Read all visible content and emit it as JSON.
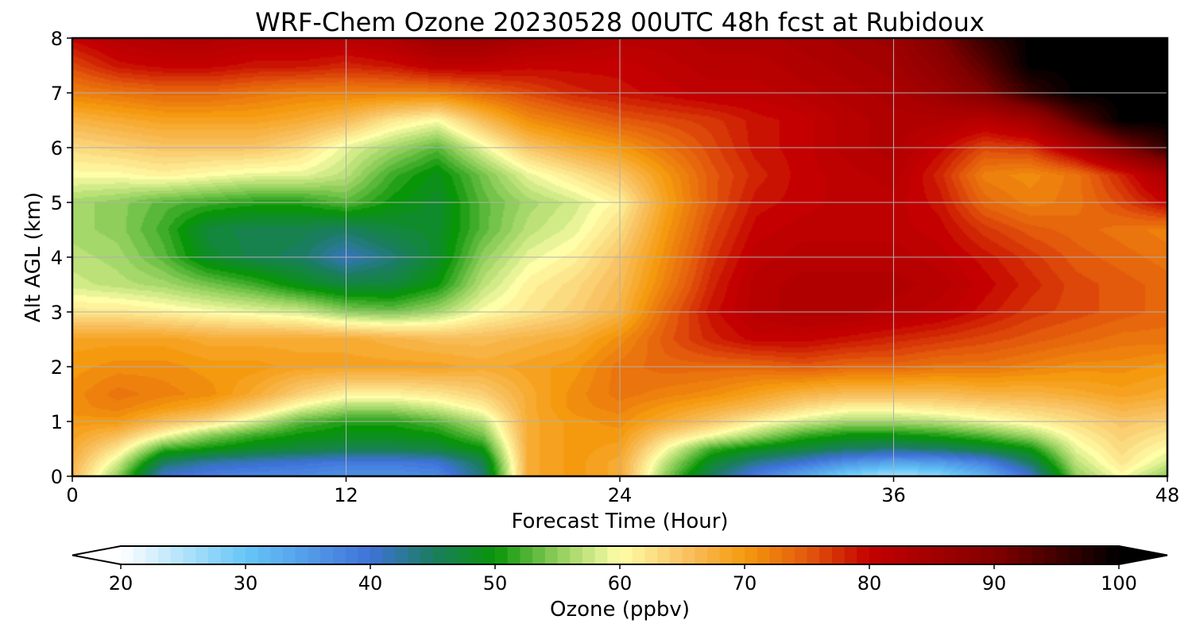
{
  "chart_data": {
    "type": "heatmap",
    "title": "WRF-Chem Ozone  20230528 00UTC 48h fcst at Rubidoux",
    "xlabel": "Forecast Time (Hour)",
    "ylabel": "Alt AGL (km)",
    "xlim": [
      0,
      48
    ],
    "ylim": [
      0,
      8
    ],
    "x_ticks": [
      "0",
      "12",
      "24",
      "36",
      "48"
    ],
    "y_ticks": [
      "0",
      "1",
      "2",
      "3",
      "4",
      "5",
      "6",
      "7",
      "8"
    ],
    "grid": true,
    "x": [
      0,
      2,
      4,
      6,
      8,
      10,
      12,
      14,
      16,
      18,
      20,
      22,
      24,
      26,
      28,
      30,
      32,
      34,
      36,
      38,
      40,
      42,
      44,
      46,
      48
    ],
    "y": [
      0,
      0.25,
      0.5,
      0.75,
      1,
      1.25,
      1.5,
      2,
      2.5,
      3,
      3.5,
      4,
      4.5,
      5,
      5.5,
      6,
      6.5,
      7,
      7.5,
      8
    ],
    "z": [
      [
        66,
        55,
        40,
        38,
        37,
        37,
        36,
        36,
        37,
        44,
        68,
        70,
        68,
        55,
        45,
        38,
        33,
        28,
        25,
        27,
        32,
        40,
        55,
        60,
        55
      ],
      [
        67,
        58,
        45,
        42,
        41,
        40,
        39,
        39,
        40,
        46,
        68,
        70,
        68,
        57,
        48,
        43,
        40,
        36,
        34,
        35,
        38,
        45,
        57,
        62,
        58
      ],
      [
        68,
        62,
        52,
        50,
        48,
        47,
        46,
        46,
        47,
        50,
        68,
        70,
        69,
        60,
        52,
        49,
        47,
        45,
        44,
        45,
        47,
        50,
        59,
        63,
        60
      ],
      [
        69,
        66,
        60,
        55,
        52,
        50,
        49,
        49,
        50,
        54,
        68,
        70,
        70,
        64,
        60,
        56,
        52,
        50,
        50,
        51,
        53,
        56,
        61,
        64,
        62
      ],
      [
        70,
        70,
        66,
        63,
        58,
        53,
        51,
        51,
        53,
        57,
        68,
        70,
        71,
        68,
        65,
        61,
        58,
        56,
        56,
        57,
        59,
        61,
        63,
        65,
        64
      ],
      [
        71,
        72,
        70,
        68,
        64,
        59,
        56,
        56,
        58,
        61,
        68,
        71,
        72,
        70,
        68,
        66,
        63,
        61,
        61,
        62,
        63,
        64,
        65,
        67,
        66
      ],
      [
        71,
        73,
        72,
        71,
        68,
        64,
        61,
        61,
        62,
        64,
        68,
        71,
        73,
        72,
        71,
        69,
        67,
        66,
        66,
        66,
        67,
        67,
        68,
        69,
        68
      ],
      [
        70,
        71,
        71,
        70,
        70,
        69,
        69,
        69,
        69,
        68,
        69,
        70,
        73,
        74,
        74,
        74,
        75,
        74,
        74,
        73,
        73,
        72,
        71,
        71,
        70
      ],
      [
        69,
        69,
        69,
        68,
        68,
        68,
        68,
        67,
        66,
        66,
        67,
        68,
        71,
        75,
        78,
        80,
        80,
        79,
        78,
        77,
        76,
        75,
        74,
        73,
        73
      ],
      [
        62,
        62,
        61,
        60,
        59,
        58,
        55,
        54,
        56,
        60,
        62,
        64,
        67,
        74,
        79,
        82,
        83,
        83,
        82,
        81,
        79,
        77,
        76,
        75,
        74
      ],
      [
        58,
        57,
        56,
        54,
        52,
        49,
        47,
        47,
        50,
        57,
        61,
        63,
        66,
        72,
        78,
        82,
        83,
        83,
        83,
        82,
        80,
        78,
        76,
        75,
        74
      ],
      [
        57,
        56,
        53,
        48,
        46,
        45,
        41,
        44,
        48,
        55,
        59,
        61,
        65,
        71,
        77,
        81,
        82,
        82,
        82,
        81,
        79,
        77,
        75,
        74,
        73
      ],
      [
        56,
        55,
        52,
        47,
        46,
        46,
        45,
        47,
        48,
        53,
        57,
        59,
        63,
        70,
        76,
        80,
        81,
        81,
        81,
        80,
        77,
        75,
        74,
        73,
        72
      ],
      [
        56,
        55,
        53,
        52,
        51,
        51,
        53,
        50,
        48,
        53,
        56,
        58,
        61,
        69,
        75,
        79,
        80,
        81,
        81,
        79,
        74,
        72,
        73,
        76,
        80
      ],
      [
        60,
        60,
        61,
        60,
        59,
        59,
        57,
        52,
        49,
        54,
        59,
        62,
        65,
        70,
        75,
        78,
        80,
        81,
        82,
        78,
        72,
        71,
        73,
        78,
        84
      ],
      [
        63,
        64,
        65,
        65,
        65,
        63,
        59,
        56,
        53,
        59,
        65,
        68,
        70,
        73,
        76,
        79,
        80,
        82,
        83,
        80,
        76,
        77,
        83,
        90,
        96
      ],
      [
        67,
        68,
        69,
        69,
        69,
        68,
        66,
        62,
        60,
        66,
        71,
        73,
        75,
        76,
        77,
        79,
        80,
        82,
        83,
        83,
        82,
        85,
        93,
        100,
        100
      ],
      [
        72,
        73,
        74,
        74,
        73,
        72,
        72,
        72,
        72,
        74,
        76,
        78,
        79,
        80,
        81,
        81,
        82,
        83,
        84,
        86,
        90,
        96,
        100,
        100,
        100
      ],
      [
        76,
        79,
        80,
        80,
        79,
        79,
        78,
        79,
        81,
        81,
        80,
        80,
        80,
        81,
        82,
        82,
        83,
        84,
        85,
        88,
        93,
        100,
        100,
        100,
        100
      ],
      [
        80,
        82,
        83,
        83,
        82,
        82,
        82,
        83,
        86,
        86,
        84,
        83,
        82,
        82,
        83,
        83,
        84,
        85,
        86,
        90,
        96,
        100,
        100,
        100,
        100
      ]
    ],
    "colorbar": {
      "label": "Ozone  (ppbv)",
      "min": 20,
      "max": 100,
      "extend": "both",
      "ticks": [
        "20",
        "30",
        "40",
        "50",
        "60",
        "70",
        "80",
        "90",
        "100"
      ],
      "tick_values": [
        20,
        30,
        40,
        50,
        60,
        70,
        80,
        90,
        100
      ],
      "stops": [
        {
          "v": 20,
          "c": "#ffffff"
        },
        {
          "v": 30,
          "c": "#66c6f7"
        },
        {
          "v": 40,
          "c": "#3f72d9"
        },
        {
          "v": 45,
          "c": "#1b7d60"
        },
        {
          "v": 50,
          "c": "#089508"
        },
        {
          "v": 55,
          "c": "#8fce5a"
        },
        {
          "v": 60,
          "c": "#fffea8"
        },
        {
          "v": 65,
          "c": "#f9c466"
        },
        {
          "v": 70,
          "c": "#f59a0e"
        },
        {
          "v": 75,
          "c": "#e35a0c"
        },
        {
          "v": 80,
          "c": "#c40000"
        },
        {
          "v": 90,
          "c": "#820000"
        },
        {
          "v": 100,
          "c": "#000000"
        }
      ]
    }
  }
}
